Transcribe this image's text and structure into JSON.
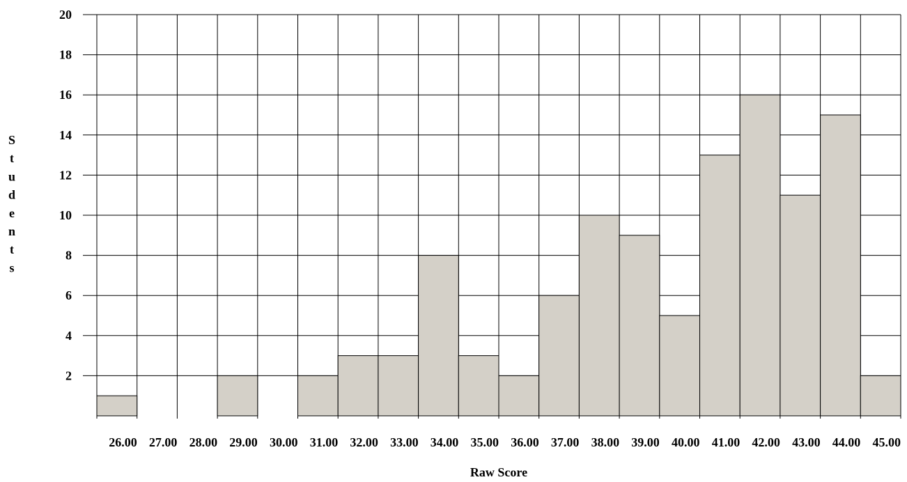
{
  "chart_data": {
    "type": "bar",
    "title": "",
    "xlabel": "Raw Score",
    "ylabel": "Students",
    "categories": [
      "26.00",
      "27.00",
      "28.00",
      "29.00",
      "30.00",
      "31.00",
      "32.00",
      "33.00",
      "34.00",
      "35.00",
      "36.00",
      "37.00",
      "38.00",
      "39.00",
      "40.00",
      "41.00",
      "42.00",
      "43.00",
      "44.00",
      "45.00"
    ],
    "values": [
      1,
      0,
      0,
      2,
      0,
      2,
      3,
      3,
      8,
      3,
      2,
      6,
      10,
      9,
      5,
      13,
      16,
      11,
      15,
      2
    ],
    "y_ticks": [
      "2",
      "4",
      "6",
      "8",
      "10",
      "12",
      "14",
      "16",
      "18",
      "20"
    ],
    "ylim": [
      0,
      20
    ],
    "grid": true,
    "legend": "none",
    "colors": {
      "bar_fill": "#d4d0c8",
      "bar_stroke": "#000000",
      "grid": "#000000",
      "background": "#ffffff"
    }
  }
}
